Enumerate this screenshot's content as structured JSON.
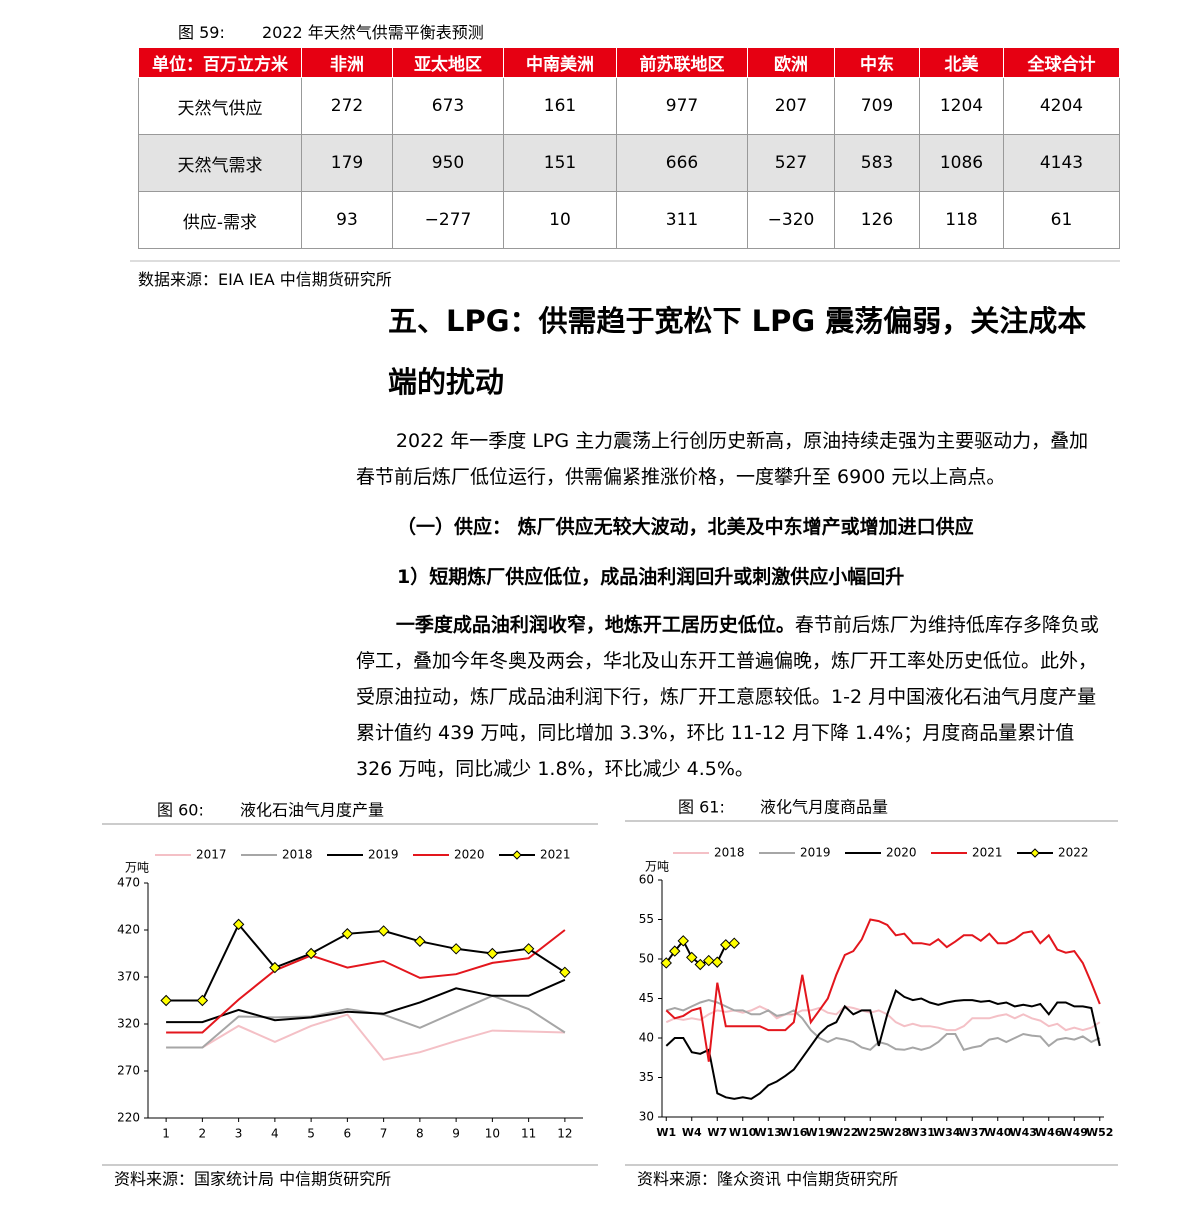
{
  "table": {
    "figure_label": "图 59:",
    "caption": "2022 年天然气供需平衡表预测",
    "header": [
      "单位：百万立方米",
      "非洲",
      "亚太地区",
      "中南美洲",
      "前苏联地区",
      "欧洲",
      "中东",
      "北美",
      "全球合计"
    ],
    "rows": [
      [
        "天然气供应",
        "272",
        "673",
        "161",
        "977",
        "207",
        "709",
        "1204",
        "4204"
      ],
      [
        "天然气需求",
        "179",
        "950",
        "151",
        "666",
        "527",
        "583",
        "1086",
        "4143"
      ],
      [
        "供应-需求",
        "93",
        "−277",
        "10",
        "311",
        "−320",
        "126",
        "118",
        "61"
      ]
    ],
    "source": "数据来源：EIA IEA 中信期货研究所"
  },
  "section": {
    "heading": "五、LPG：供需趋于宽松下 LPG 震荡偏弱，关注成本端的扰动",
    "paragraph1": "2022 年一季度 LPG 主力震荡上行创历史新高，原油持续走强为主要驱动力，叠加春节前后炼厂低位运行，供需偏紧推涨价格，一度攀升至 6900 元以上高点。",
    "subheading1": "（一）供应： 炼厂供应无较大波动，北美及中东增产或增加进口供应",
    "subheading2": "1）短期炼厂供应低位，成品油利润回升或刺激供应小幅回升",
    "paragraph2": {
      "bold": "一季度成品油利润收窄，地炼开工居历史低位。",
      "text": "春节前后炼厂为维持低库存多降负或停工，叠加今年冬奥及两会，华北及山东开工普遍偏晚，炼厂开工率处历史低位。此外，受原油拉动，炼厂成品油利润下行，炼厂开工意愿较低。1-2 月中国液化石油气月度产量累计值约 439 万吨，同比增加 3.3%，环比 11-12 月下降 1.4%；月度商品量累计值 326 万吨，同比减少 1.8%，环比减少 4.5%。"
    }
  },
  "chart_data": [
    {
      "type": "line",
      "figure_label": "图 60:",
      "title": "液化石油气月度产量",
      "unit": "万吨",
      "source": "资料来源：国家统计局 中信期货研究所",
      "categories": [
        "1",
        "2",
        "3",
        "4",
        "5",
        "6",
        "7",
        "8",
        "9",
        "10",
        "11",
        "12"
      ],
      "ylim": [
        220,
        470
      ],
      "yticks": [
        220,
        270,
        320,
        370,
        420,
        470
      ],
      "grid": false,
      "legend": "top",
      "series": [
        {
          "name": "2017",
          "color": "#f4c0c6",
          "values": [
            295,
            295,
            318,
            301,
            318,
            330,
            282,
            290,
            302,
            313,
            312,
            311
          ]
        },
        {
          "name": "2018",
          "color": "#a6a6a6",
          "values": [
            295,
            295,
            328,
            327,
            328,
            336,
            330,
            316,
            333,
            350,
            336,
            311
          ]
        },
        {
          "name": "2019",
          "color": "#000000",
          "values": [
            322,
            322,
            335,
            324,
            327,
            333,
            331,
            343,
            358,
            350,
            350,
            367
          ]
        },
        {
          "name": "2020",
          "color": "#e3161d",
          "values": [
            311,
            311,
            346,
            377,
            393,
            380,
            387,
            369,
            373,
            385,
            390,
            420
          ]
        },
        {
          "name": "2021",
          "color": "#000000",
          "marker": "diamond",
          "marker_color": "#ffff00",
          "values": [
            345,
            345,
            426,
            380,
            395,
            416,
            419,
            408,
            400,
            395,
            400,
            375
          ]
        }
      ]
    },
    {
      "type": "line",
      "figure_label": "图 61:",
      "title": "液化气月度商品量",
      "unit": "万吨",
      "source": "资料来源：隆众资讯 中信期货研究所",
      "categories": [
        "W1",
        null,
        null,
        "W4",
        null,
        null,
        "W7",
        null,
        null,
        "W10",
        null,
        null,
        "W13",
        null,
        null,
        "W16",
        null,
        null,
        "W19",
        null,
        null,
        "W22",
        null,
        null,
        "W25",
        null,
        null,
        "W28",
        null,
        null,
        "W31",
        null,
        null,
        "W34",
        null,
        null,
        "W37",
        null,
        null,
        "W40",
        null,
        null,
        "W43",
        null,
        null,
        "W46",
        null,
        null,
        "W49",
        null,
        null,
        "W52"
      ],
      "ylim": [
        30,
        60
      ],
      "yticks": [
        30,
        35,
        40,
        45,
        50,
        55,
        60
      ],
      "grid": false,
      "legend": "top",
      "series": [
        {
          "name": "2018",
          "color": "#f4c0c6",
          "values": [
            42,
            42.5,
            42.3,
            42.5,
            42.3,
            43,
            43.5,
            43.3,
            43.5,
            43.2,
            43.5,
            44,
            43.5,
            42.5,
            43,
            43,
            43.5,
            43.5,
            43.8,
            43.2,
            43,
            44,
            43.8,
            43.5,
            43.2,
            43.5,
            43,
            42,
            41.5,
            41.8,
            41.5,
            41.5,
            41.3,
            41,
            41,
            41.5,
            42.5,
            42.5,
            42.5,
            42.8,
            43,
            42.5,
            43,
            42.5,
            42.2,
            41.5,
            41.8,
            41,
            41.3,
            41,
            41.3,
            42
          ]
        },
        {
          "name": "2019",
          "color": "#a6a6a6",
          "values": [
            43.5,
            43.8,
            43.5,
            44,
            44.5,
            44.8,
            44.5,
            44,
            43.5,
            43.5,
            43,
            43,
            43.5,
            42.8,
            43,
            43.5,
            42.5,
            41,
            40,
            39.5,
            40,
            39.8,
            39.5,
            38.8,
            38.5,
            39.5,
            39.2,
            38.6,
            38.5,
            38.8,
            38.5,
            38.8,
            39.5,
            40.5,
            40.5,
            38.5,
            38.8,
            39,
            39.8,
            40,
            39.5,
            40,
            40.5,
            40.3,
            40.2,
            39,
            39.8,
            40,
            39.8,
            40.2,
            39.5,
            40
          ]
        },
        {
          "name": "2020",
          "color": "#000000",
          "values": [
            39,
            40,
            40,
            38.2,
            38,
            38.5,
            33,
            32.5,
            32.3,
            32.5,
            32.3,
            33,
            34,
            34.5,
            35.2,
            36,
            37.5,
            39,
            40.5,
            41.5,
            42,
            44,
            43,
            43.5,
            43.5,
            39,
            43,
            46,
            45.2,
            44.8,
            45,
            44.5,
            44.2,
            44.5,
            44.7,
            44.8,
            44.8,
            44.6,
            44.7,
            44.3,
            44.5,
            44,
            44.2,
            44,
            44.3,
            43,
            44.5,
            44.5,
            44,
            44,
            43.8,
            39
          ]
        },
        {
          "name": "2021",
          "color": "#e3161d",
          "values": [
            43.5,
            42.5,
            42.8,
            43.5,
            43.8,
            37,
            47,
            41.5,
            41.5,
            41.5,
            41.5,
            41.5,
            41,
            41,
            41,
            42,
            48,
            42,
            43.5,
            45,
            48,
            50.5,
            51,
            52.5,
            55,
            54.8,
            54.3,
            53,
            53.2,
            52,
            52,
            51.8,
            52.5,
            51.5,
            52.2,
            53,
            53,
            52.3,
            53.2,
            52,
            52,
            52.5,
            53.3,
            53.5,
            52,
            53,
            51.2,
            50.8,
            51,
            49.5,
            47,
            44.3
          ]
        },
        {
          "name": "2022",
          "color": "#000000",
          "marker": "diamond",
          "marker_color": "#ffff00",
          "values": [
            49.5,
            51,
            52.3,
            50.2,
            49.3,
            49.8,
            49.6,
            51.8,
            52,
            null,
            null,
            null,
            null,
            null,
            null,
            null,
            null,
            null,
            null,
            null,
            null,
            null,
            null,
            null,
            null,
            null,
            null,
            null,
            null,
            null,
            null,
            null,
            null,
            null,
            null,
            null,
            null,
            null,
            null,
            null,
            null,
            null,
            null,
            null,
            null,
            null,
            null,
            null,
            null,
            null,
            null,
            null
          ]
        }
      ]
    }
  ]
}
